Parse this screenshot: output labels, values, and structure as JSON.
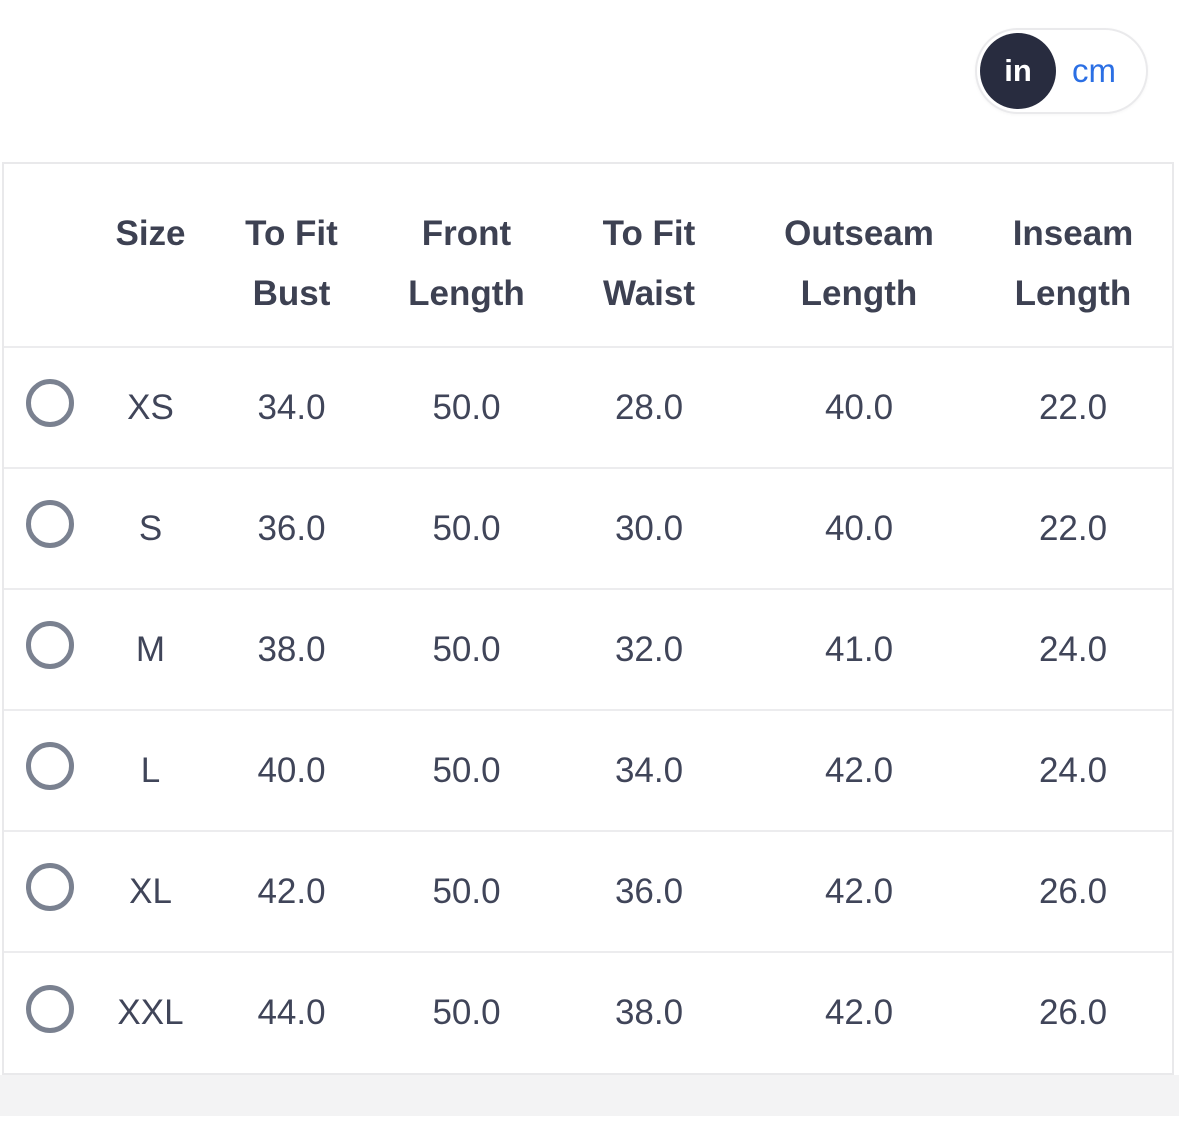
{
  "unit_toggle": {
    "selected": "in",
    "in_label": "in",
    "cm_label": "cm"
  },
  "size_table": {
    "headers": [
      {
        "line1": "Size"
      },
      {
        "line1": "To Fit",
        "line2": "Bust"
      },
      {
        "line1": "Front",
        "line2": "Length"
      },
      {
        "line1": "To Fit",
        "line2": "Waist"
      },
      {
        "line1": "Outseam",
        "line2": "Length"
      },
      {
        "line1": "Inseam",
        "line2": "Length"
      }
    ],
    "rows": [
      {
        "size": "XS",
        "selected": false,
        "values": [
          "34.0",
          "50.0",
          "28.0",
          "40.0",
          "22.0"
        ]
      },
      {
        "size": "S",
        "selected": false,
        "values": [
          "36.0",
          "50.0",
          "30.0",
          "40.0",
          "22.0"
        ]
      },
      {
        "size": "M",
        "selected": false,
        "values": [
          "38.0",
          "50.0",
          "32.0",
          "41.0",
          "24.0"
        ]
      },
      {
        "size": "L",
        "selected": false,
        "values": [
          "40.0",
          "50.0",
          "34.0",
          "42.0",
          "24.0"
        ]
      },
      {
        "size": "XL",
        "selected": false,
        "values": [
          "42.0",
          "50.0",
          "36.0",
          "42.0",
          "26.0"
        ]
      },
      {
        "size": "XXL",
        "selected": false,
        "values": [
          "44.0",
          "50.0",
          "38.0",
          "42.0",
          "26.0"
        ]
      }
    ]
  },
  "colors": {
    "toggle_selected_bg": "#282c3f",
    "toggle_cm_text": "#2b6fe4",
    "header_text": "#3d4152",
    "value_text": "#404559",
    "radio_ring": "#7a8190",
    "row_divider": "#ececee",
    "bottom_band": "#f3f3f4"
  }
}
